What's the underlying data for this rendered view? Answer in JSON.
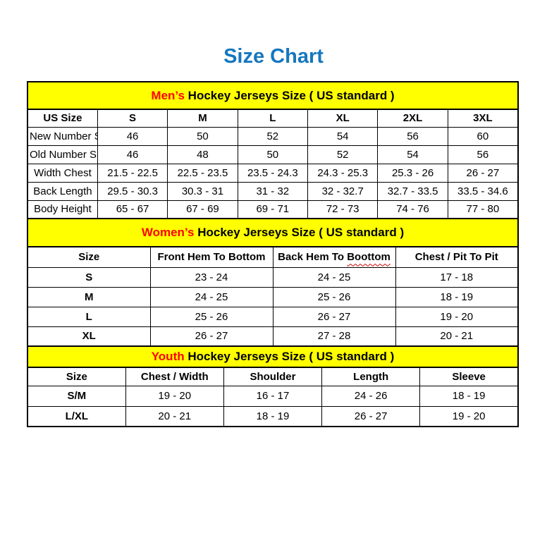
{
  "title": "Size Chart",
  "colors": {
    "title_blue": "#1577be",
    "header_yellow": "#ffff00",
    "accent_red": "#ff0000",
    "border_black": "#000000",
    "squiggle_red": "#cc0000"
  },
  "tables": [
    {
      "name": "mens",
      "banner": {
        "accent": "Men’s",
        "rest": " Hockey Jerseys Size ( US standard )"
      },
      "columns": [
        {
          "text": "US Size"
        },
        {
          "text": "S"
        },
        {
          "text": "M"
        },
        {
          "text": "L"
        },
        {
          "text": "XL"
        },
        {
          "text": "2XL"
        },
        {
          "text": "3XL"
        }
      ],
      "rows": [
        {
          "label": "New Number Size",
          "values": [
            "46",
            "50",
            "52",
            "54",
            "56",
            "60"
          ]
        },
        {
          "label": "Old Number Size",
          "values": [
            "46",
            "48",
            "50",
            "52",
            "54",
            "56"
          ]
        },
        {
          "label": "Width Chest",
          "values": [
            "21.5 - 22.5",
            "22.5 - 23.5",
            "23.5 - 24.3",
            "24.3 - 25.3",
            "25.3 - 26",
            "26 - 27"
          ]
        },
        {
          "label": "Back Length",
          "values": [
            "29.5 - 30.3",
            "30.3 - 31",
            "31 - 32",
            "32 - 32.7",
            "32.7 - 33.5",
            "33.5 - 34.6"
          ]
        },
        {
          "label": "Body Height",
          "values": [
            "65 - 67",
            "67 - 69",
            "69 - 71",
            "72 - 73",
            "74 - 76",
            "77 - 80"
          ]
        }
      ]
    },
    {
      "name": "womens",
      "banner": {
        "accent": "Women’s",
        "rest": " Hockey Jerseys Size ( US standard )"
      },
      "columns": [
        {
          "text": "Size"
        },
        {
          "text": "Front Hem To Bottom"
        },
        {
          "text": "Back Hem To ",
          "squiggle": "Boottom"
        },
        {
          "text": "Chest / Pit To Pit"
        }
      ],
      "rows": [
        {
          "label": "S",
          "values": [
            "23 - 24",
            "24 - 25",
            "17 - 18"
          ]
        },
        {
          "label": "M",
          "values": [
            "24 - 25",
            "25 - 26",
            "18 - 19"
          ]
        },
        {
          "label": "L",
          "values": [
            "25 - 26",
            "26 - 27",
            "19 - 20"
          ]
        },
        {
          "label": "XL",
          "values": [
            "26 - 27",
            "27 - 28",
            "20 - 21"
          ]
        }
      ]
    },
    {
      "name": "youth",
      "banner": {
        "accent": "Youth",
        "rest": " Hockey Jerseys Size ( US standard )"
      },
      "columns": [
        {
          "text": "Size"
        },
        {
          "text": "Chest / Width"
        },
        {
          "text": "Shoulder"
        },
        {
          "text": "Length"
        },
        {
          "text": "Sleeve"
        }
      ],
      "rows": [
        {
          "label": "S/M",
          "values": [
            "19 - 20",
            "16 - 17",
            "24 - 26",
            "18 - 19"
          ]
        },
        {
          "label": "L/XL",
          "values": [
            "20 - 21",
            "18 - 19",
            "26 - 27",
            "19 - 20"
          ]
        }
      ]
    }
  ]
}
